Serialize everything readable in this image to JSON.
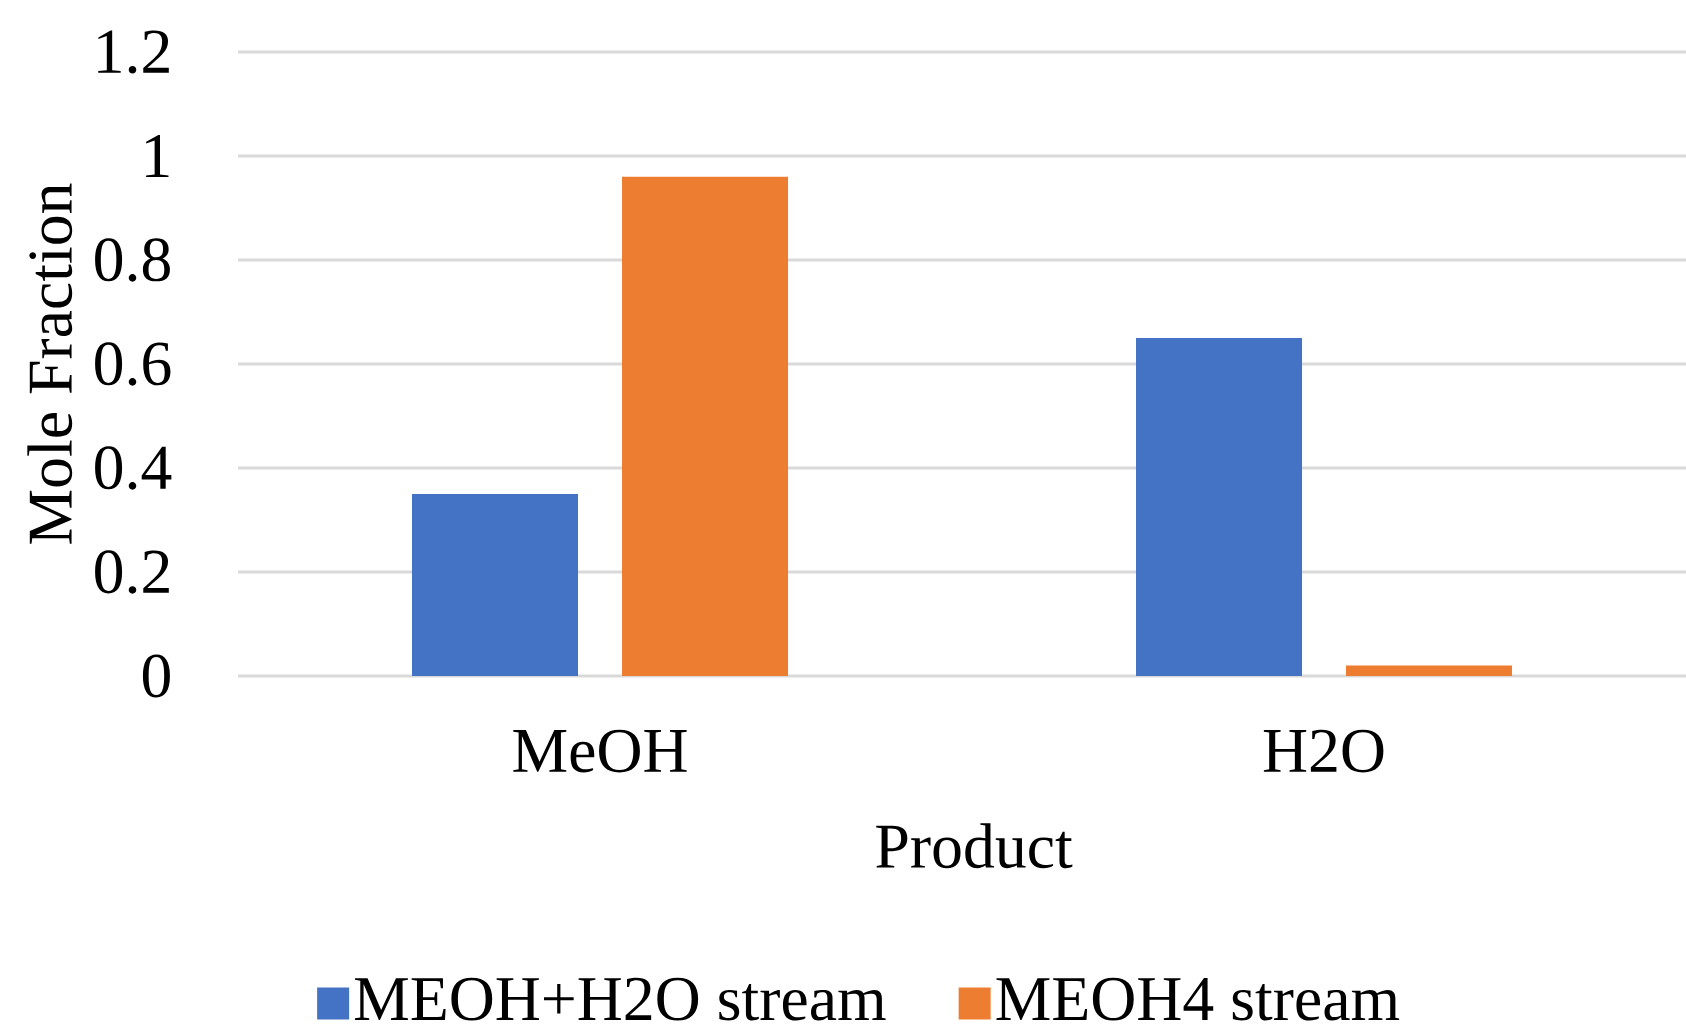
{
  "chart_data": {
    "type": "bar",
    "xlabel": "Product",
    "ylabel": "Mole Fraction",
    "categories": [
      "MeOH",
      "H2O"
    ],
    "series": [
      {
        "name": "MEOH+H2O stream",
        "color": "#4472c4",
        "values": [
          0.35,
          0.65
        ]
      },
      {
        "name": "MEOH4 stream",
        "color": "#ed7d31",
        "values": [
          0.96,
          0.02
        ]
      }
    ],
    "ylim": [
      0,
      1.2
    ],
    "yticks": [
      0,
      0.2,
      0.4,
      0.6,
      0.8,
      1,
      1.2
    ],
    "grid": "y",
    "legend": "bottom"
  }
}
